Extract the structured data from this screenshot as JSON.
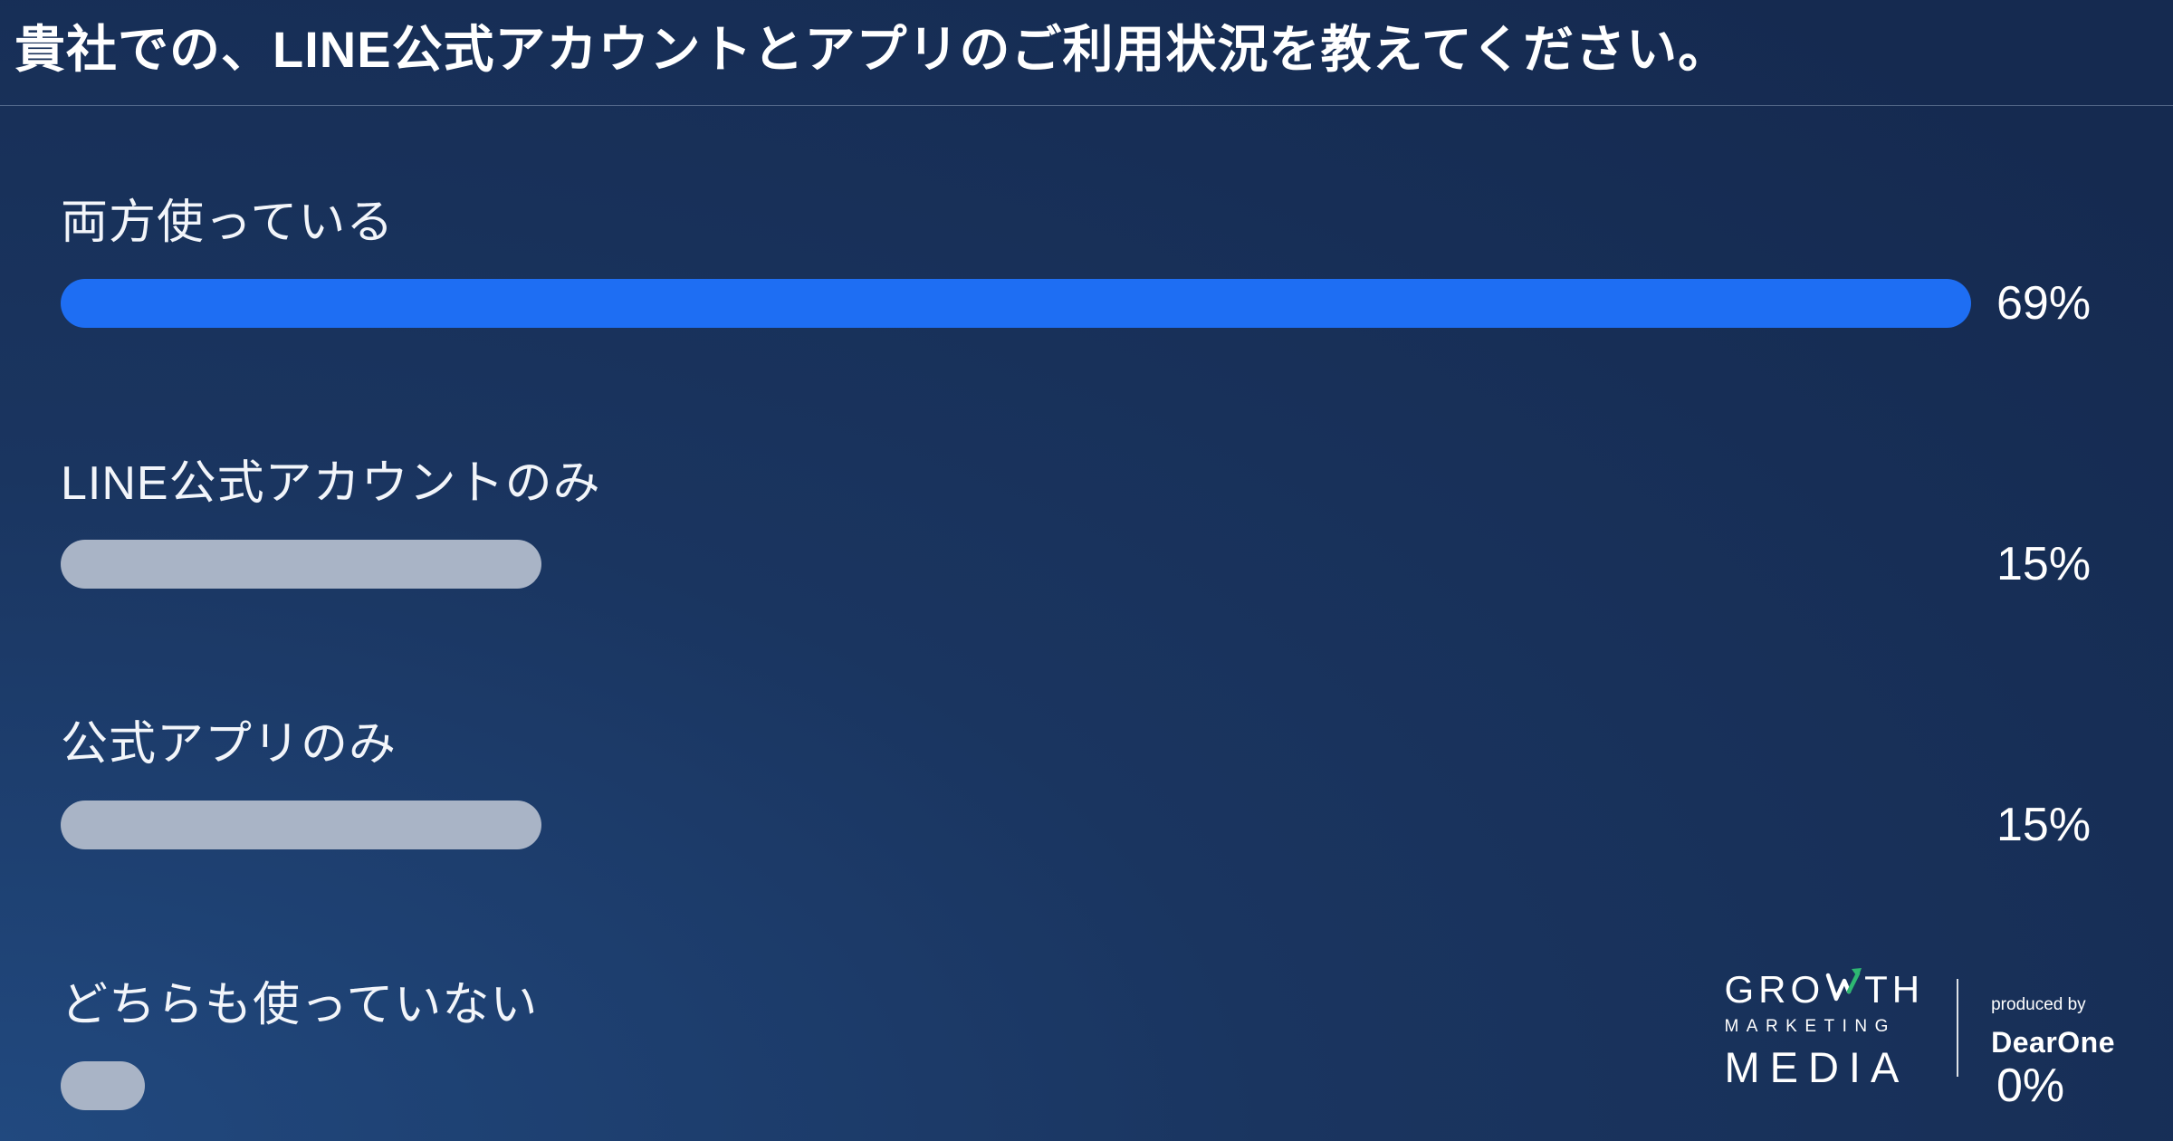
{
  "header": {
    "title": "貴社での、LINE公式アカウントとアプリのご利用状況を教えてください。"
  },
  "chart_data": {
    "type": "bar",
    "orientation": "horizontal",
    "title": "貴社での、LINE公式アカウントとアプリのご利用状況を教えてください。",
    "categories": [
      "両方使っている",
      "LINE公式アカウントのみ",
      "公式アプリのみ",
      "どちらも使っていない"
    ],
    "values": [
      69,
      15,
      15,
      0
    ],
    "value_suffix": "%",
    "max_value": 69,
    "min_stub_percent": 4.4,
    "bar_colors": [
      "#1e6ef3",
      "#a9b4c6",
      "#a9b4c6",
      "#a9b4c6"
    ],
    "value_label_color": "#ffffff",
    "grid": false,
    "legend": false
  },
  "footer": {
    "logo_line1_left": "GRO",
    "logo_line1_right": "TH",
    "logo_line2": "MARKETING",
    "logo_line3": "MEDIA",
    "produced_by": "produced by",
    "brand": "DearOne",
    "accent_green": "#2eb872"
  },
  "colors": {
    "background_top": "#152a50",
    "background_bottom_left": "#21497f",
    "divider": "rgba(190,205,230,0.35)",
    "text": "#ffffff"
  }
}
